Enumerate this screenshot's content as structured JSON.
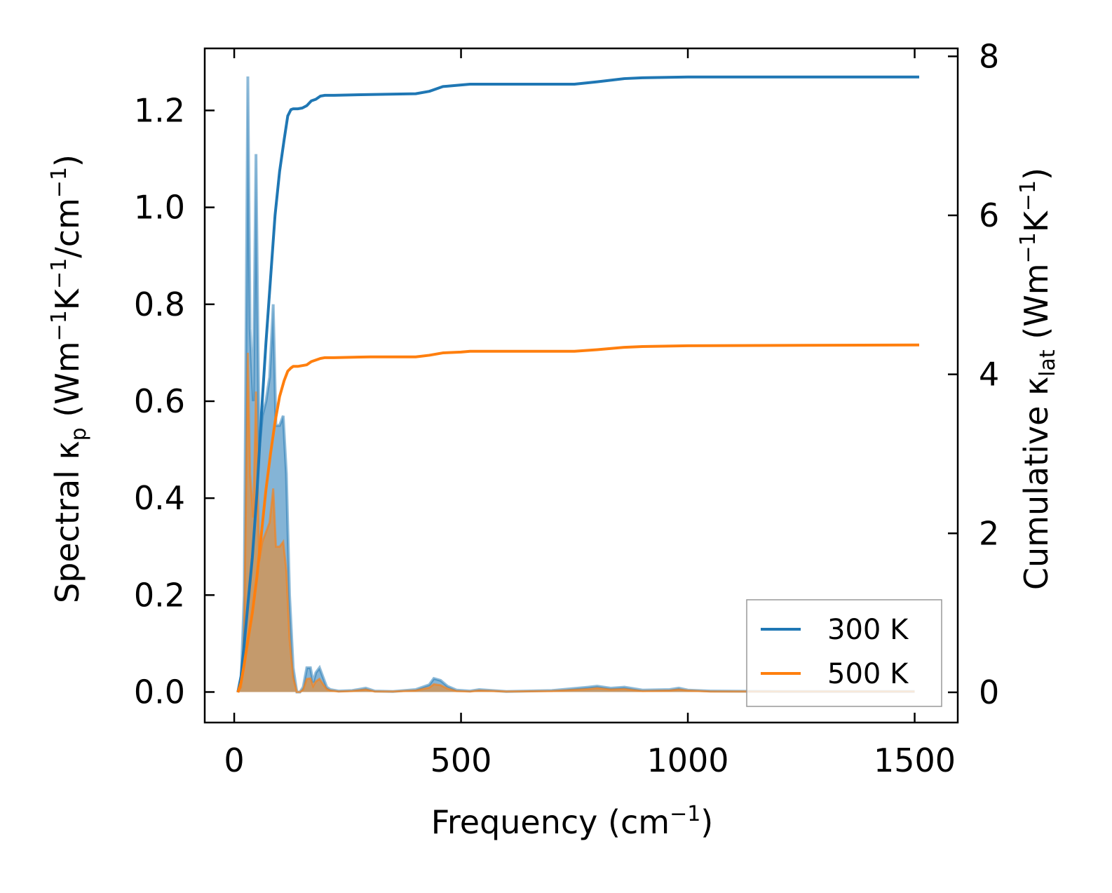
{
  "chart_data": {
    "type": "line",
    "xlabel": {
      "main": "Frequency (cm",
      "sup": "−1",
      "tail": ")"
    },
    "ylabel_left": {
      "p1": "Spectral κ",
      "sub": "p",
      "p2": " (Wm",
      "sup1": "−1",
      "p3": "K",
      "sup2": "−1",
      "p4": "/cm",
      "sup3": "−1",
      "p5": ")"
    },
    "ylabel_right": {
      "p1": "Cumulative κ",
      "sub": "lat",
      "p2": " (Wm",
      "sup1": "−1",
      "p3": "K",
      "sup2": "−1",
      "p4": ")"
    },
    "xlim": [
      -65,
      1595
    ],
    "ylim_left": [
      -0.063,
      1.328
    ],
    "ylim_right": [
      -0.38,
      8.1
    ],
    "xticks": [
      0,
      500,
      1000,
      1500
    ],
    "yticks_left": [
      0.0,
      0.2,
      0.4,
      0.6,
      0.8,
      1.0,
      1.2
    ],
    "yticks_left_labels": [
      "0.0",
      "0.2",
      "0.4",
      "0.6",
      "0.8",
      "1.0",
      "1.2"
    ],
    "yticks_right": [
      0,
      2,
      4,
      6,
      8
    ],
    "yticks_right_labels": [
      "0",
      "2",
      "4",
      "6",
      "8"
    ],
    "legend": {
      "position": "lower-right",
      "entries": [
        "300 K",
        "500 K"
      ]
    },
    "colors": {
      "300K": "#1f77b4",
      "500K": "#ff7f0e",
      "fill_500K": "#c49a6c"
    },
    "spectral_300K": {
      "x": [
        8,
        15,
        22,
        30,
        35,
        42,
        48,
        55,
        62,
        70,
        78,
        86,
        92,
        100,
        108,
        115,
        122,
        130,
        138,
        145,
        152,
        160,
        168,
        174,
        180,
        188,
        196,
        204,
        212,
        230,
        260,
        290,
        310,
        350,
        400,
        430,
        440,
        455,
        470,
        490,
        520,
        540,
        600,
        700,
        780,
        800,
        830,
        860,
        900,
        960,
        980,
        1000,
        1050,
        1200,
        1350,
        1500
      ],
      "y": [
        0.0,
        0.02,
        0.2,
        1.27,
        0.75,
        0.6,
        1.11,
        0.5,
        0.57,
        0.6,
        0.65,
        0.8,
        0.55,
        0.55,
        0.57,
        0.45,
        0.2,
        0.05,
        0.0,
        0.0,
        0.01,
        0.05,
        0.05,
        0.02,
        0.04,
        0.05,
        0.03,
        0.01,
        0.005,
        0.002,
        0.003,
        0.008,
        0.002,
        0.001,
        0.005,
        0.015,
        0.028,
        0.024,
        0.012,
        0.004,
        0.002,
        0.005,
        0.001,
        0.003,
        0.01,
        0.012,
        0.008,
        0.01,
        0.004,
        0.005,
        0.008,
        0.004,
        0.002,
        0.001,
        0.001,
        0.001
      ]
    },
    "spectral_500K": {
      "x": [
        8,
        15,
        22,
        30,
        35,
        42,
        48,
        55,
        62,
        70,
        78,
        86,
        92,
        100,
        108,
        115,
        122,
        130,
        138,
        145,
        152,
        160,
        168,
        174,
        180,
        188,
        196,
        204,
        212,
        230,
        260,
        290,
        310,
        350,
        400,
        430,
        440,
        455,
        470,
        490,
        520,
        540,
        600,
        700,
        780,
        800,
        830,
        860,
        900,
        960,
        980,
        1000,
        1050,
        1200,
        1350,
        1500
      ],
      "y": [
        0.0,
        0.01,
        0.12,
        0.7,
        0.45,
        0.36,
        0.62,
        0.27,
        0.31,
        0.33,
        0.35,
        0.42,
        0.3,
        0.3,
        0.31,
        0.25,
        0.11,
        0.03,
        0.0,
        0.0,
        0.005,
        0.027,
        0.028,
        0.012,
        0.022,
        0.027,
        0.016,
        0.006,
        0.003,
        0.001,
        0.002,
        0.005,
        0.001,
        0.001,
        0.003,
        0.009,
        0.016,
        0.014,
        0.007,
        0.002,
        0.001,
        0.003,
        0.001,
        0.002,
        0.006,
        0.008,
        0.005,
        0.006,
        0.002,
        0.003,
        0.005,
        0.003,
        0.001,
        0.001,
        0.001,
        0.001
      ]
    },
    "cumulative_300K": {
      "x": [
        8,
        15,
        22,
        30,
        40,
        50,
        60,
        70,
        80,
        90,
        100,
        110,
        118,
        125,
        130,
        140,
        150,
        160,
        170,
        180,
        190,
        200,
        220,
        300,
        400,
        430,
        460,
        500,
        520,
        750,
        800,
        860,
        900,
        1000,
        1510
      ],
      "y": [
        0.0,
        0.2,
        0.6,
        1.1,
        1.7,
        2.5,
        3.5,
        4.4,
        5.2,
        6.0,
        6.55,
        6.95,
        7.25,
        7.33,
        7.34,
        7.34,
        7.35,
        7.38,
        7.44,
        7.46,
        7.5,
        7.51,
        7.51,
        7.52,
        7.53,
        7.56,
        7.62,
        7.64,
        7.65,
        7.65,
        7.68,
        7.72,
        7.73,
        7.74,
        7.74
      ]
    },
    "cumulative_500K": {
      "x": [
        8,
        15,
        22,
        30,
        40,
        50,
        60,
        70,
        80,
        90,
        100,
        110,
        118,
        125,
        130,
        140,
        150,
        160,
        170,
        180,
        190,
        200,
        220,
        300,
        400,
        430,
        460,
        500,
        520,
        750,
        800,
        860,
        900,
        1000,
        1510
      ],
      "y": [
        0.0,
        0.12,
        0.35,
        0.65,
        1.0,
        1.45,
        2.0,
        2.55,
        3.0,
        3.4,
        3.72,
        3.92,
        4.04,
        4.08,
        4.1,
        4.1,
        4.11,
        4.12,
        4.16,
        4.18,
        4.2,
        4.21,
        4.21,
        4.22,
        4.22,
        4.24,
        4.27,
        4.28,
        4.29,
        4.29,
        4.31,
        4.34,
        4.35,
        4.36,
        4.37
      ]
    }
  }
}
